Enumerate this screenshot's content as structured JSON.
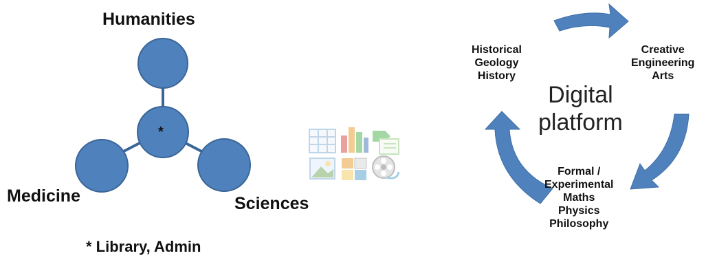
{
  "hub_diagram": {
    "center_marker": "*",
    "nodes": [
      {
        "label": "Humanities"
      },
      {
        "label": "Medicine"
      },
      {
        "label": "Sciences"
      }
    ],
    "footnote": "* Library, Admin",
    "colors": {
      "node_fill": "#4f81bd",
      "node_stroke": "#3a6597",
      "connector": "#3a6597"
    }
  },
  "icon_grid": {
    "icons": [
      "table-icon",
      "bar-chart-icon",
      "list-icon",
      "picture-icon",
      "image-grid-icon",
      "film-reel-icon"
    ]
  },
  "cycle_diagram": {
    "center_title": [
      "Digital",
      "platform"
    ],
    "segments": [
      {
        "lines": [
          "Historical",
          "Geology",
          "History"
        ]
      },
      {
        "lines": [
          "Creative",
          "Engineering",
          "Arts"
        ]
      },
      {
        "lines": [
          "Formal /",
          "Experimental",
          "Maths",
          "Physics",
          "Philosophy"
        ]
      }
    ],
    "colors": {
      "arrow_fill": "#4f81bd"
    }
  }
}
